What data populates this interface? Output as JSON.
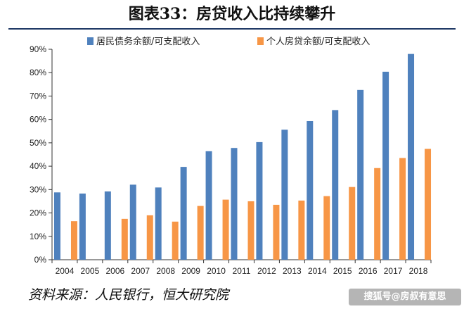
{
  "page": {
    "title": "图表33：房贷收入比持续攀升",
    "source": "资料来源：人民银行，恒大研究院",
    "watermark": "搜狐号@房叔有意思"
  },
  "colors": {
    "series1": "#4f81bd",
    "series2": "#f79646",
    "title_rule": "#1f3864"
  },
  "chart_data": {
    "type": "bar",
    "categories": [
      "2004",
      "2005",
      "2006",
      "2007",
      "2008",
      "2009",
      "2010",
      "2011",
      "2012",
      "2013",
      "2014",
      "2015",
      "2016",
      "2017",
      "2018"
    ],
    "series": [
      {
        "name": "居民债务余额/可支配收入",
        "values": [
          28.8,
          28.3,
          29.2,
          32.1,
          30.9,
          39.7,
          46.4,
          47.8,
          50.3,
          55.6,
          59.3,
          64.0,
          72.6,
          80.4,
          88.0
        ]
      },
      {
        "name": "个人房贷余额/可支配收入",
        "values": [
          16.5,
          null,
          17.5,
          19.0,
          16.3,
          23.0,
          25.7,
          25.0,
          23.5,
          25.3,
          27.2,
          31.1,
          39.2,
          43.5,
          47.4
        ]
      }
    ],
    "ylim": [
      0,
      90
    ],
    "yticks": [
      0,
      10,
      20,
      30,
      40,
      50,
      60,
      70,
      80,
      90
    ],
    "ytick_labels": [
      "0%",
      "10%",
      "20%",
      "30%",
      "40%",
      "50%",
      "60%",
      "70%",
      "80%",
      "90%"
    ],
    "legend_position": "top",
    "grid": false
  }
}
